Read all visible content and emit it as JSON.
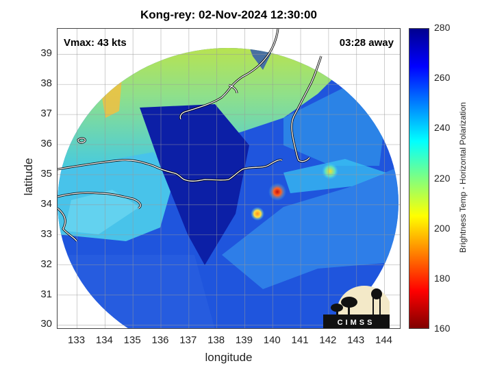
{
  "title": "Kong-rey: 02-Nov-2024 12:30:00",
  "vmax_label": "Vmax: 43 kts",
  "time_away_label": "03:28 away",
  "x_axis": {
    "label": "longitude",
    "range": [
      132.3,
      144.6
    ],
    "ticks": [
      "133",
      "134",
      "135",
      "136",
      "137",
      "138",
      "139",
      "140",
      "141",
      "142",
      "143",
      "144"
    ]
  },
  "y_axis": {
    "label": "latitude",
    "range": [
      29.85,
      39.85
    ],
    "ticks": [
      "30",
      "31",
      "32",
      "33",
      "34",
      "35",
      "36",
      "37",
      "38",
      "39"
    ]
  },
  "colorbar": {
    "label": "Brightness Temp - Horizontal Polarization",
    "range": [
      160,
      280
    ],
    "ticks": [
      "280",
      "260",
      "240",
      "220",
      "200",
      "180",
      "160"
    ],
    "colormap": "jet",
    "colors": [
      "#800000",
      "#ff0000",
      "#ff8000",
      "#ffff00",
      "#80ff80",
      "#00ffff",
      "#0080ff",
      "#0000ff",
      "#00008f"
    ]
  },
  "logo": {
    "text": "CIMSS"
  },
  "swath": {
    "center": [
      138.15,
      34.85
    ],
    "background_color": "#1e4ed8",
    "regions": [
      {
        "name": "cold-north-land",
        "color": "#b7e04a",
        "lon": 135.6,
        "lat": 38.7
      },
      {
        "name": "western-land",
        "color": "#47c4e6",
        "lon": 133.6,
        "lat": 34.2
      },
      {
        "name": "deep-blue-slant",
        "color": "#0a1d9c",
        "lon": 137.0,
        "lat": 34.2
      },
      {
        "name": "convection-core-1",
        "color": "#e02a10",
        "lon": 140.1,
        "lat": 34.4
      },
      {
        "name": "convection-core-2",
        "color": "#ff9a20",
        "lon": 139.35,
        "lat": 33.65
      },
      {
        "name": "convection-core-3",
        "color": "#f5d020",
        "lon": 141.95,
        "lat": 35.1
      }
    ]
  }
}
